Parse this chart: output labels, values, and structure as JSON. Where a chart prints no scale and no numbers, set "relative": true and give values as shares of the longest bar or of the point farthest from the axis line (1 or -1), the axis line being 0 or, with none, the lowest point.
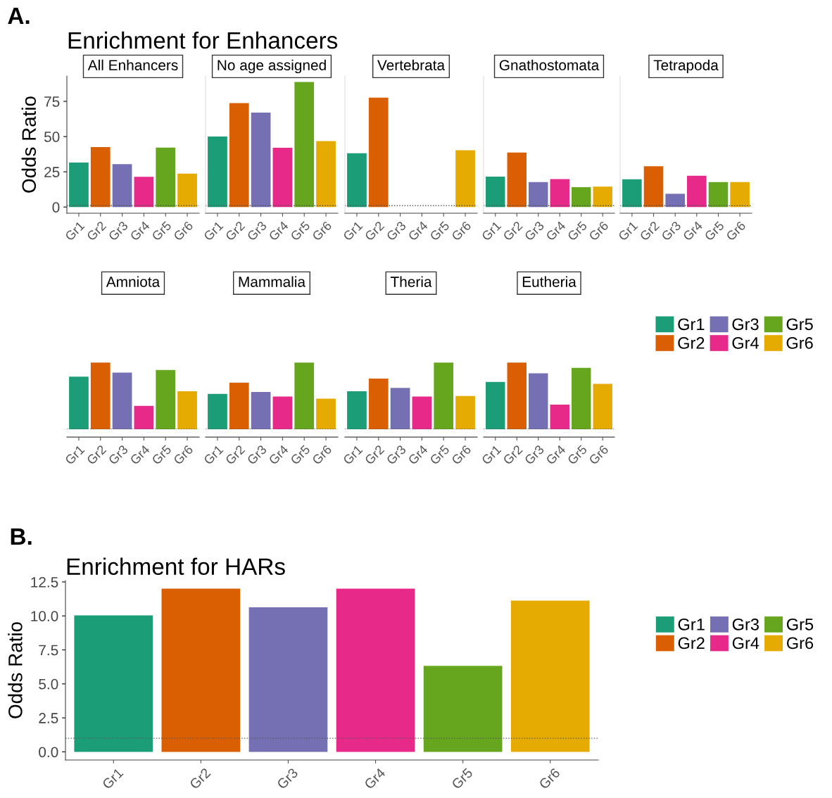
{
  "chart_data": [
    {
      "type": "bar",
      "title": "All Enhancers",
      "annotations": [
        "A.",
        "Enrichment for Enhancers"
      ],
      "ylabel": "Odds Ratio",
      "categories": [
        "Gr1",
        "Gr2",
        "Gr3",
        "Gr4",
        "Gr5",
        "Gr6"
      ],
      "values": [
        31.6,
        42.6,
        30.4,
        21.4,
        42.2,
        23.7
      ],
      "colors": [
        "#1b9e77",
        "#d95f02",
        "#7570b3",
        "#e7298a",
        "#66a61e",
        "#e6ab02"
      ],
      "ylim": [
        -4.4,
        93
      ],
      "yticks": [
        0,
        25,
        50,
        75
      ],
      "ref_lines": [
        {
          "axis": "y",
          "value": 1,
          "line_style": "dotted",
          "color": "#555555"
        }
      ]
    },
    {
      "type": "bar",
      "title": "No age assigned",
      "categories": [
        "Gr1",
        "Gr2",
        "Gr3",
        "Gr4",
        "Gr5",
        "Gr6"
      ],
      "values": [
        50.1,
        73.8,
        67,
        42,
        88.8,
        46.8
      ],
      "colors": [
        "#1b9e77",
        "#d95f02",
        "#7570b3",
        "#e7298a",
        "#66a61e",
        "#e6ab02"
      ],
      "ylim": [
        -4.4,
        93
      ],
      "tick_labels": "x",
      "ref_lines": [
        {
          "axis": "y",
          "value": 1,
          "line_style": "dotted",
          "color": "#555555"
        }
      ]
    },
    {
      "type": "bar",
      "title": "Vertebrata",
      "categories": [
        "Gr1",
        "Gr2",
        "Gr3",
        "Gr4",
        "Gr5",
        "Gr6"
      ],
      "values": [
        38.2,
        77.6,
        null,
        null,
        null,
        40.3
      ],
      "colors": [
        "#1b9e77",
        "#d95f02",
        "#7570b3",
        "#e7298a",
        "#66a61e",
        "#e6ab02"
      ],
      "ylim": [
        -4.4,
        93
      ],
      "tick_labels": "x",
      "ref_lines": [
        {
          "axis": "y",
          "value": 1,
          "line_style": "dotted",
          "color": "#555555"
        }
      ]
    },
    {
      "type": "bar",
      "title": "Gnathostomata",
      "categories": [
        "Gr1",
        "Gr2",
        "Gr3",
        "Gr4",
        "Gr5",
        "Gr6"
      ],
      "values": [
        21.6,
        38.7,
        17.7,
        19.8,
        14.1,
        14.5
      ],
      "colors": [
        "#1b9e77",
        "#d95f02",
        "#7570b3",
        "#e7298a",
        "#66a61e",
        "#e6ab02"
      ],
      "ylim": [
        -4.4,
        93
      ],
      "tick_labels": "x",
      "ref_lines": [
        {
          "axis": "y",
          "value": 1,
          "line_style": "dotted",
          "color": "#555555"
        }
      ]
    },
    {
      "type": "bar",
      "title": "Tetrapoda",
      "categories": [
        "Gr1",
        "Gr2",
        "Gr3",
        "Gr4",
        "Gr5",
        "Gr6"
      ],
      "values": [
        19.7,
        28.9,
        9.4,
        22.2,
        17.7,
        17.7
      ],
      "colors": [
        "#1b9e77",
        "#d95f02",
        "#7570b3",
        "#e7298a",
        "#66a61e",
        "#e6ab02"
      ],
      "ylim": [
        -4.4,
        93
      ],
      "tick_labels": "x",
      "ref_lines": [
        {
          "axis": "y",
          "value": 1,
          "line_style": "dotted",
          "color": "#555555"
        }
      ]
    },
    {
      "type": "bar",
      "title": "Amniota",
      "relative": true,
      "categories": [
        "Gr1",
        "Gr2",
        "Gr3",
        "Gr4",
        "Gr5",
        "Gr6"
      ],
      "values": [
        0.79,
        1,
        0.85,
        0.35,
        0.89,
        0.57
      ],
      "colors": [
        "#1b9e77",
        "#d95f02",
        "#7570b3",
        "#e7298a",
        "#66a61e",
        "#e6ab02"
      ],
      "tick_labels": "x",
      "ref_lines": [
        {
          "axis": "y",
          "value": 0,
          "line_style": "dotted",
          "color": "#555555"
        }
      ]
    },
    {
      "type": "bar",
      "title": "Mammalia",
      "relative": true,
      "categories": [
        "Gr1",
        "Gr2",
        "Gr3",
        "Gr4",
        "Gr5",
        "Gr6"
      ],
      "values": [
        0.53,
        0.7,
        0.56,
        0.49,
        1,
        0.46
      ],
      "colors": [
        "#1b9e77",
        "#d95f02",
        "#7570b3",
        "#e7298a",
        "#66a61e",
        "#e6ab02"
      ],
      "tick_labels": "x",
      "ref_lines": [
        {
          "axis": "y",
          "value": 0,
          "line_style": "dotted",
          "color": "#555555"
        }
      ]
    },
    {
      "type": "bar",
      "title": "Theria",
      "relative": true,
      "categories": [
        "Gr1",
        "Gr2",
        "Gr3",
        "Gr4",
        "Gr5",
        "Gr6"
      ],
      "values": [
        0.57,
        0.76,
        0.62,
        0.49,
        1,
        0.5
      ],
      "colors": [
        "#1b9e77",
        "#d95f02",
        "#7570b3",
        "#e7298a",
        "#66a61e",
        "#e6ab02"
      ],
      "tick_labels": "x",
      "ref_lines": [
        {
          "axis": "y",
          "value": 0,
          "line_style": "dotted",
          "color": "#555555"
        }
      ]
    },
    {
      "type": "bar",
      "title": "Eutheria",
      "relative": true,
      "categories": [
        "Gr1",
        "Gr2",
        "Gr3",
        "Gr4",
        "Gr5",
        "Gr6"
      ],
      "tick_labels": "x",
      "legend": "right",
      "ref_lines": [
        {
          "axis": "y",
          "value": 0,
          "line_style": "dotted",
          "color": "#555555"
        }
      ],
      "series": [
        {
          "name": "Gr1",
          "color": "#1b9e77",
          "values": [
            0.71,
            null,
            null,
            null,
            null,
            null
          ]
        },
        {
          "name": "Gr2",
          "color": "#d95f02",
          "values": [
            null,
            1,
            null,
            null,
            null,
            null
          ]
        },
        {
          "name": "Gr3",
          "color": "#7570b3",
          "values": [
            null,
            null,
            0.84,
            null,
            null,
            null
          ]
        },
        {
          "name": "Gr4",
          "color": "#e7298a",
          "values": [
            null,
            null,
            null,
            0.37,
            null,
            null
          ]
        },
        {
          "name": "Gr5",
          "color": "#66a61e",
          "values": [
            null,
            null,
            null,
            null,
            0.92,
            null
          ]
        },
        {
          "name": "Gr6",
          "color": "#e6ab02",
          "values": [
            null,
            null,
            null,
            null,
            null,
            0.68
          ]
        }
      ]
    },
    {
      "type": "bar",
      "title": "Enrichment for HARs",
      "annotations": [
        "B."
      ],
      "ylabel": "Odds Ratio",
      "categories": [
        "Gr1",
        "Gr2",
        "Gr3",
        "Gr4",
        "Gr5",
        "Gr6"
      ],
      "ylim": [
        -0.6,
        12.6
      ],
      "yticks": [
        {
          "value": 0,
          "label": "0.0"
        },
        {
          "value": 2.5,
          "label": "2.5"
        },
        {
          "value": 5,
          "label": "5.0"
        },
        {
          "value": 7.5,
          "label": "7.5"
        },
        {
          "value": 10,
          "label": "10.0"
        },
        {
          "value": 12.5,
          "label": "12.5"
        }
      ],
      "legend": "right",
      "ref_lines": [
        {
          "axis": "y",
          "value": 1,
          "line_style": "dotted",
          "color": "#555555"
        }
      ],
      "series": [
        {
          "name": "Gr1",
          "color": "#1b9e77",
          "values": [
            10.04,
            null,
            null,
            null,
            null,
            null
          ]
        },
        {
          "name": "Gr2",
          "color": "#d95f02",
          "values": [
            null,
            12.0,
            null,
            null,
            null,
            null
          ]
        },
        {
          "name": "Gr3",
          "color": "#7570b3",
          "values": [
            null,
            null,
            10.63,
            null,
            null,
            null
          ]
        },
        {
          "name": "Gr4",
          "color": "#e7298a",
          "values": [
            null,
            null,
            null,
            12.0,
            null,
            null
          ]
        },
        {
          "name": "Gr5",
          "color": "#66a61e",
          "values": [
            null,
            null,
            null,
            null,
            6.32,
            null
          ]
        },
        {
          "name": "Gr6",
          "color": "#e6ab02",
          "values": [
            null,
            null,
            null,
            null,
            null,
            11.12
          ]
        }
      ]
    }
  ]
}
